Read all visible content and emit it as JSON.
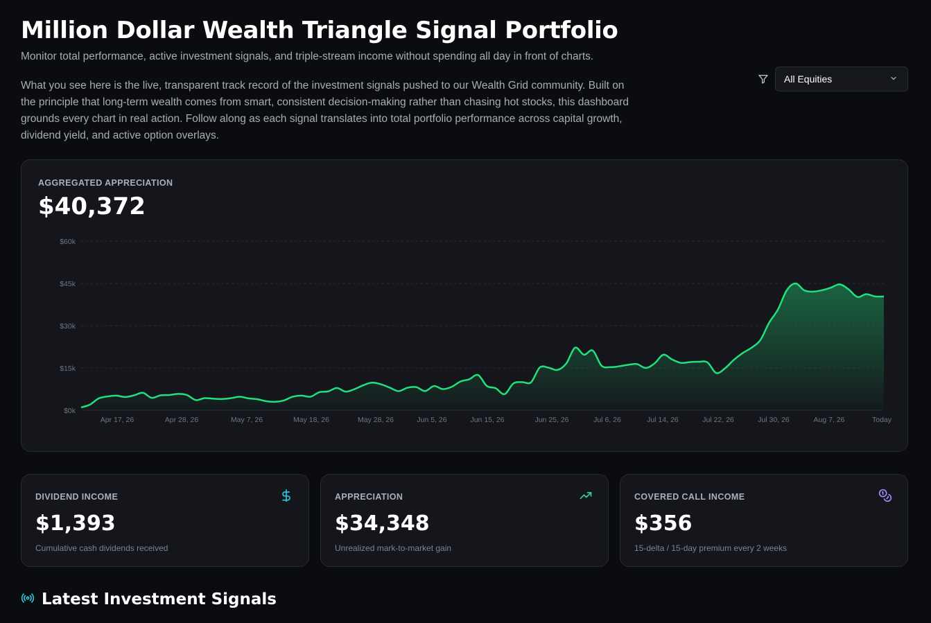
{
  "header": {
    "title": "Million Dollar Wealth Triangle Signal Portfolio",
    "subtitle": "Monitor total performance, active investment signals, and triple-stream income without spending all day in front of charts.",
    "intro": "What you see here is the live, transparent track record of the investment signals pushed to our Wealth Grid community. Built on the principle that long-term wealth comes from smart, consistent decision-making rather than chasing hot stocks, this dashboard grounds every chart in real action. Follow along as each signal translates into total portfolio performance across capital growth, dividend yield, and active option overlays."
  },
  "filter": {
    "icon": "filter-icon",
    "selected": "All Equities"
  },
  "main_card": {
    "label": "AGGREGATED APPRECIATION",
    "value": "$40,372"
  },
  "chart_data": {
    "type": "area",
    "ylim": [
      0,
      60000
    ],
    "yticks": [
      "$0k",
      "$15k",
      "$30k",
      "$45k",
      "$60k"
    ],
    "xtick_labels": [
      "Apr 17, 26",
      "Apr 28, 26",
      "May 7, 26",
      "May 18, 26",
      "May 28, 26",
      "Jun 5, 26",
      "Jun 15, 26",
      "Jun 25, 26",
      "Jul 6, 26",
      "Jul 14, 26",
      "Jul 22, 26",
      "Jul 30, 26",
      "Aug 7, 26",
      "Today"
    ],
    "line_color": "#22e07d",
    "grid": true,
    "values": [
      1000,
      2000,
      4200,
      4900,
      5200,
      4700,
      5300,
      6200,
      4400,
      5300,
      5400,
      5800,
      5400,
      3600,
      4300,
      4100,
      4000,
      4300,
      4800,
      4200,
      3900,
      3200,
      3000,
      3500,
      4800,
      5200,
      4800,
      6400,
      6700,
      7900,
      6600,
      7500,
      8900,
      9800,
      9200,
      8000,
      6800,
      8000,
      8200,
      6800,
      8600,
      7500,
      8300,
      10200,
      11000,
      12500,
      8600,
      7800,
      5700,
      9500,
      10000,
      9900,
      15200,
      15100,
      14300,
      16600,
      22200,
      19700,
      21200,
      15800,
      15300,
      15600,
      16100,
      16400,
      15000,
      16600,
      19700,
      18000,
      16800,
      17100,
      17200,
      17000,
      13200,
      14900,
      17900,
      20300,
      22200,
      24900,
      31100,
      35800,
      42600,
      45000,
      42500,
      42100,
      42600,
      43500,
      44700,
      42900,
      40200,
      41200,
      40400,
      40372
    ]
  },
  "stats": [
    {
      "label": "DIVIDEND INCOME",
      "value": "$1,393",
      "note": "Cumulative cash dividends received",
      "icon": "dollar-icon",
      "color": "#2fc4e0"
    },
    {
      "label": "APPRECIATION",
      "value": "$34,348",
      "note": "Unrealized mark-to-market gain",
      "icon": "trending-up-icon",
      "color": "#34d399"
    },
    {
      "label": "COVERED CALL INCOME",
      "value": "$356",
      "note": "15-delta / 15-day premium every 2 weeks",
      "icon": "coins-icon",
      "color": "#a78bfa"
    }
  ],
  "signals_section": {
    "title": "Latest Investment Signals",
    "icon": "radio-signal-icon",
    "icon_color": "#2fc4e0"
  }
}
